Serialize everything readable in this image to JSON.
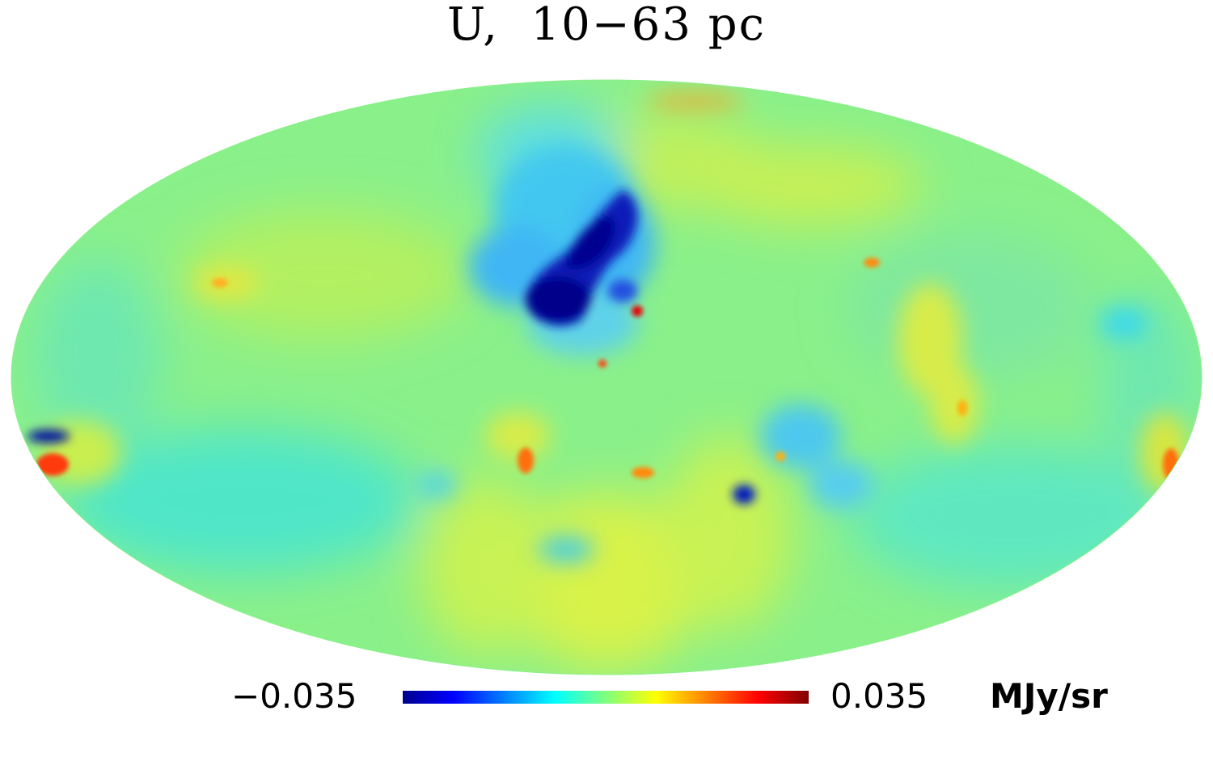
{
  "title": "U,  10−63 pc",
  "map": {
    "projection": "mollweide",
    "colormap": [
      "#00008f",
      "#0000ff",
      "#00ffff",
      "#7fff7f",
      "#ffff00",
      "#ff7f00",
      "#ff0000",
      "#800000"
    ],
    "background_value_color": "#86f08a"
  },
  "colorbar": {
    "min_label": "−0.035",
    "max_label": "0.035",
    "unit": "MJy/sr",
    "min": -0.035,
    "max": 0.035
  }
}
